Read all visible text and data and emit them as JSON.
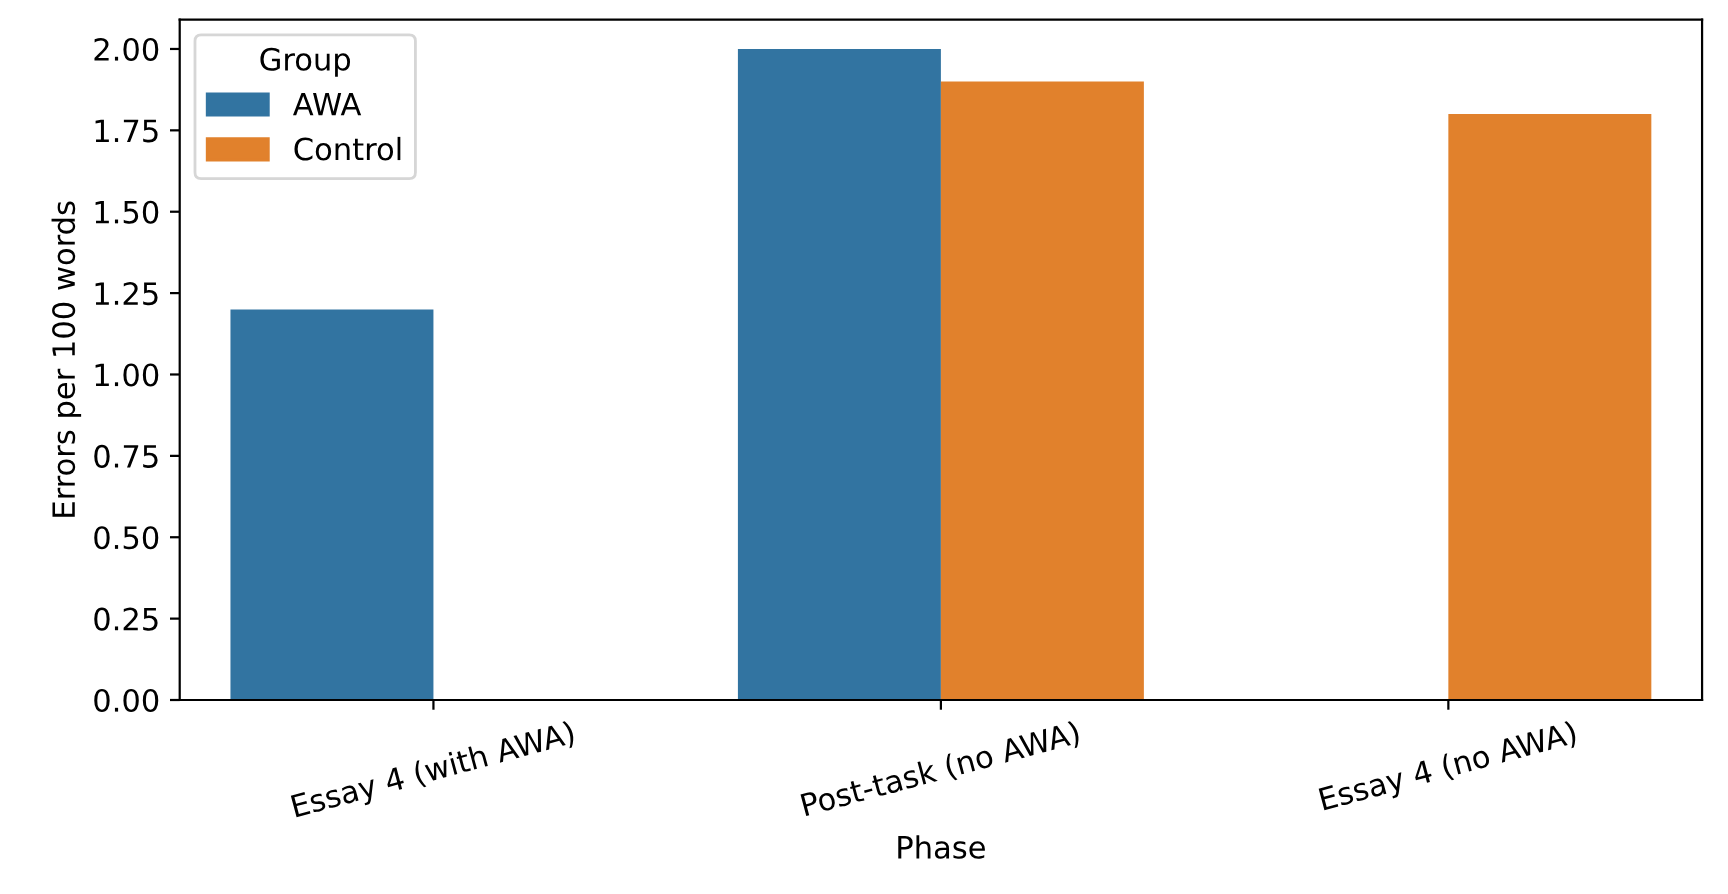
{
  "chart_data": {
    "type": "bar",
    "xlabel": "Phase",
    "ylabel": "Errors per 100 words",
    "legend_title": "Group",
    "categories": [
      "Essay 4 (with AWA)",
      "Post-task (no AWA)",
      "Essay 4 (no AWA)"
    ],
    "series": [
      {
        "name": "AWA",
        "color": "#3274a1",
        "values": [
          1.2,
          2.0,
          null
        ]
      },
      {
        "name": "Control",
        "color": "#e1812c",
        "values": [
          null,
          1.9,
          1.8
        ]
      }
    ],
    "ylim": [
      0,
      2.09
    ],
    "yticks": [
      {
        "value": 0,
        "label": "0.00"
      },
      {
        "value": 0.25,
        "label": "0.25"
      },
      {
        "value": 0.5,
        "label": "0.50"
      },
      {
        "value": 0.75,
        "label": "0.75"
      },
      {
        "value": 1,
        "label": "1.00"
      },
      {
        "value": 1.25,
        "label": "1.25"
      },
      {
        "value": 1.5,
        "label": "1.50"
      },
      {
        "value": 1.75,
        "label": "1.75"
      },
      {
        "value": 2,
        "label": "2.00"
      }
    ],
    "grid": false,
    "legend": "top left"
  }
}
